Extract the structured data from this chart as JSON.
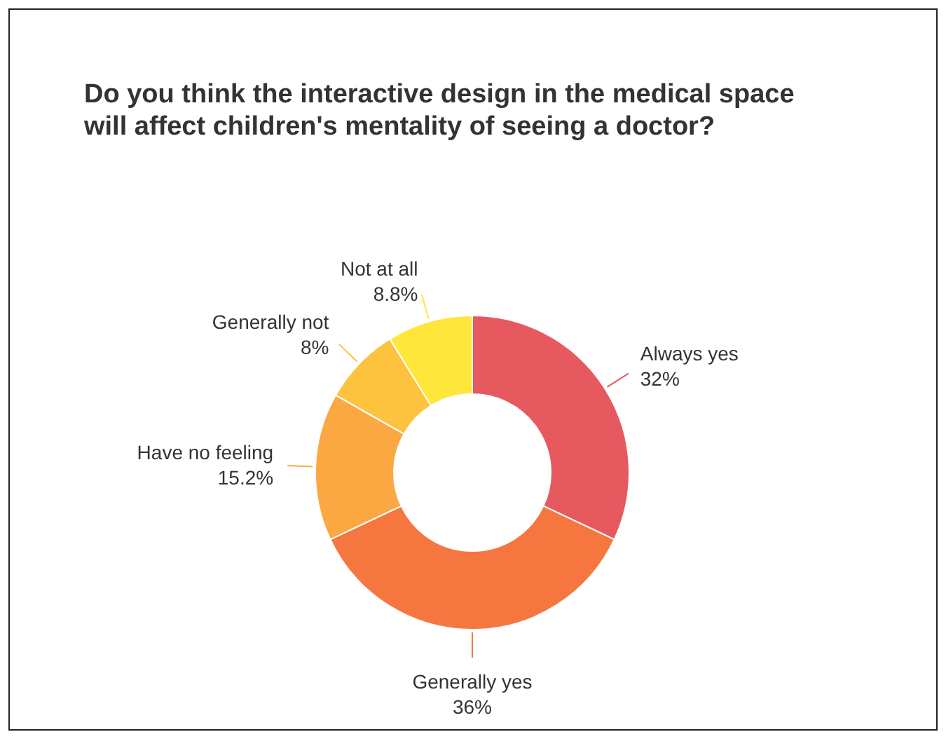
{
  "chart_data": {
    "type": "donut",
    "title": "Do you think the interactive design in the medical space will affect children's mentality of seeing a doctor?",
    "categories": [
      "Always yes",
      "Generally yes",
      "Have no feeling",
      "Generally not",
      "Not at all"
    ],
    "values": [
      32,
      36,
      15.2,
      8,
      8.8
    ],
    "value_labels": [
      "32%",
      "36%",
      "15.2%",
      "8%",
      "8.8%"
    ],
    "colors": [
      "#e65a5f",
      "#f5773f",
      "#fba843",
      "#fdc23e",
      "#fee73a"
    ]
  }
}
